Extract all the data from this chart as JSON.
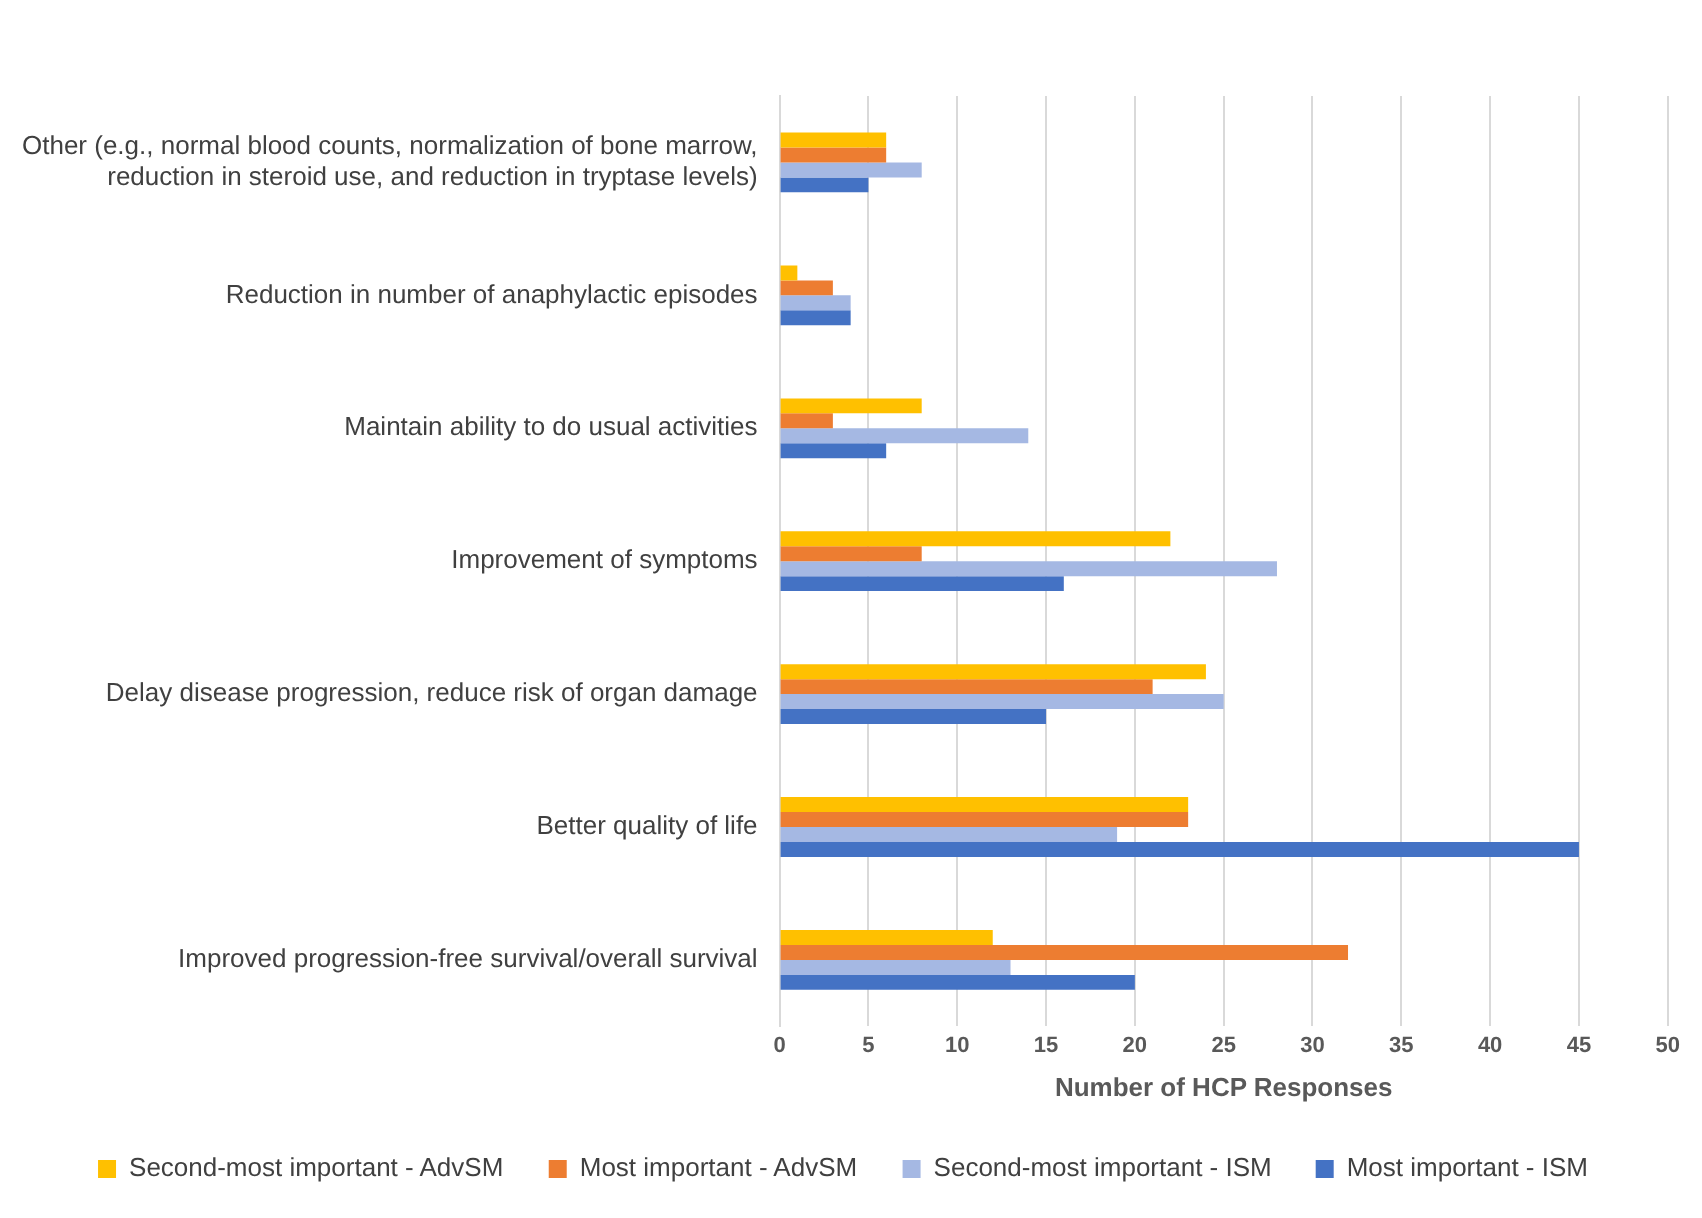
{
  "chart_data": {
    "type": "bar",
    "orientation": "horizontal",
    "xlabel": "Number of HCP Responses",
    "categories": [
      "Other (e.g., normal blood counts, normalization of bone marrow, reduction in steroid use, and reduction in tryptase levels)",
      "Reduction in number of anaphylactic episodes",
      "Maintain ability to do usual activities",
      "Improvement of symptoms",
      "Delay disease progression, reduce risk of organ damage",
      "Better quality of life",
      "Improved progression-free survival/overall survival"
    ],
    "series": [
      {
        "name": "Second-most important - AdvSM",
        "color": "#ffc000",
        "values": [
          6,
          1,
          8,
          22,
          24,
          23,
          12
        ]
      },
      {
        "name": "Most important - AdvSM",
        "color": "#ed7d31",
        "values": [
          6,
          3,
          3,
          8,
          21,
          23,
          32
        ]
      },
      {
        "name": "Second-most important - ISM",
        "color": "#a5b8e3",
        "values": [
          8,
          4,
          14,
          28,
          25,
          19,
          13
        ]
      },
      {
        "name": "Most important - ISM",
        "color": "#4472c4",
        "values": [
          5,
          4,
          6,
          16,
          15,
          45,
          20
        ]
      }
    ],
    "xlim": [
      0,
      50
    ],
    "xticks": [
      0,
      5,
      10,
      15,
      20,
      25,
      30,
      35,
      40,
      45,
      50
    ],
    "grid": "x",
    "legend": "bottom"
  }
}
